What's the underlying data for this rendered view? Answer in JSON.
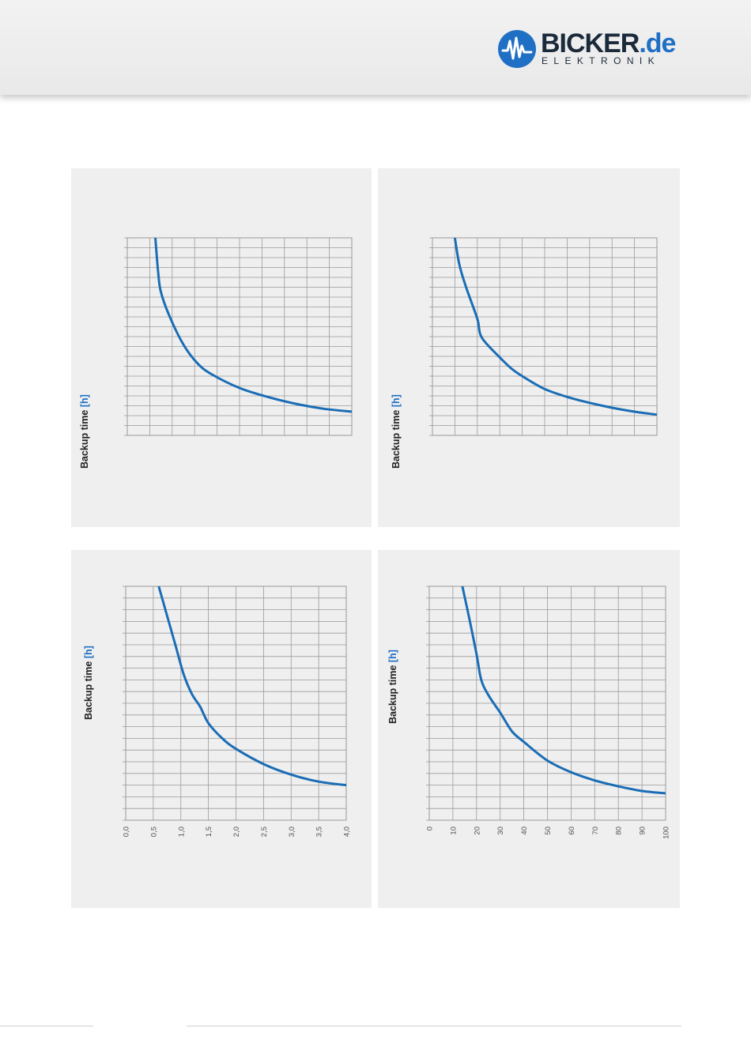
{
  "header": {
    "brand_main": "BICKER",
    "brand_tld": ".de",
    "brand_sub": "ELEKTRONIK",
    "brand_color": "#1f6fc4",
    "icon": "waveform-logo-icon"
  },
  "style": {
    "curve_color": "#1a6db5",
    "grid_color": "#9a9a9a",
    "label_accent_color": "#1f6fc4",
    "panel_bg": "#efefef"
  },
  "chart_data": [
    {
      "type": "line",
      "ylabel_text": "Backup time ",
      "ylabel_unit": "[h]",
      "xlim": [
        0,
        4
      ],
      "x_tick_labels": [],
      "grid": true,
      "series": [
        {
          "x": [
            0.5,
            0.55,
            0.6,
            0.75,
            1.0,
            1.25,
            1.5,
            2.0,
            2.5,
            3.0,
            3.5,
            4.0
          ],
          "y": [
            20.0,
            16.5,
            14.5,
            12.1,
            9.2,
            7.3,
            6.2,
            4.8,
            3.9,
            3.2,
            2.7,
            2.4
          ]
        }
      ]
    },
    {
      "type": "line",
      "ylabel_text": "Backup time ",
      "ylabel_unit": "[h]",
      "xlim": [
        0,
        100
      ],
      "x_tick_labels": [],
      "grid": true,
      "series": [
        {
          "x": [
            10,
            12,
            15,
            20,
            22,
            30,
            35,
            40,
            50,
            60,
            70,
            80,
            90,
            100
          ],
          "y": [
            20.0,
            17.3,
            15.0,
            11.8,
            9.9,
            7.9,
            6.8,
            6.0,
            4.7,
            3.9,
            3.3,
            2.8,
            2.4,
            2.1
          ]
        }
      ]
    },
    {
      "type": "line",
      "ylabel_text": "Backup time ",
      "ylabel_unit": "[h]",
      "xlim": [
        0,
        4
      ],
      "x_tick_labels": [
        "0,0",
        "0,5",
        "1,0",
        "1,5",
        "2,0",
        "2,5",
        "3,0",
        "3,5",
        "4,0"
      ],
      "grid": true,
      "series": [
        {
          "x": [
            0.6,
            0.75,
            0.9,
            1.05,
            1.2,
            1.35,
            1.5,
            1.75,
            2.0,
            2.5,
            3.0,
            3.5,
            4.0
          ],
          "y": [
            20.0,
            17.5,
            15.0,
            12.5,
            10.8,
            9.7,
            8.3,
            7.0,
            6.1,
            4.8,
            3.9,
            3.3,
            3.0
          ]
        }
      ]
    },
    {
      "type": "line",
      "ylabel_text": "Backup time ",
      "ylabel_unit": "[h]",
      "xlim": [
        0,
        100
      ],
      "x_tick_labels": [
        "0",
        "10",
        "20",
        "30",
        "40",
        "50",
        "60",
        "70",
        "80",
        "90",
        "100"
      ],
      "grid": true,
      "series": [
        {
          "x": [
            14,
            17,
            20,
            22,
            25,
            30,
            35,
            40,
            50,
            60,
            70,
            80,
            90,
            100
          ],
          "y": [
            20.0,
            17.2,
            14.2,
            12.0,
            10.7,
            9.2,
            7.6,
            6.7,
            5.1,
            4.1,
            3.4,
            2.9,
            2.5,
            2.3
          ]
        }
      ]
    }
  ]
}
